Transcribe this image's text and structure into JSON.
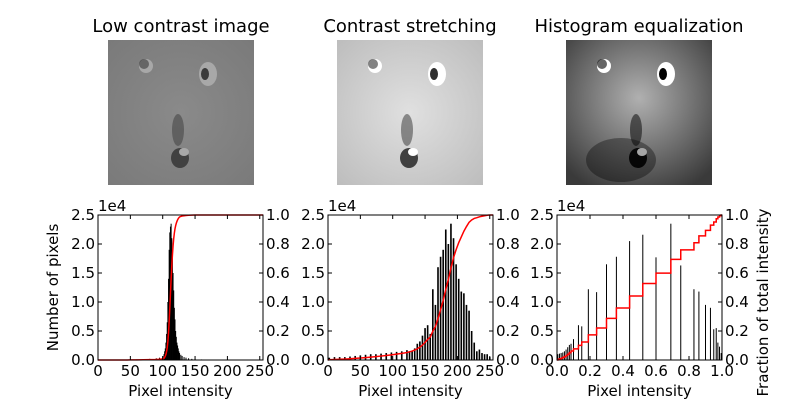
{
  "colors": {
    "cdf_line": "#ff0000",
    "bars": "#000000",
    "background": "#ffffff"
  },
  "images": [
    {
      "title": "Low contrast image",
      "tone": "low-contrast gray"
    },
    {
      "title": "Contrast stretching",
      "tone": "stretched light gray"
    },
    {
      "title": "Histogram equalization",
      "tone": "equalized high contrast"
    }
  ],
  "chart_data": [
    {
      "type": "bar",
      "xlabel": "Pixel intensity",
      "ylabel": "Number of pixels",
      "ylabel_right": "",
      "y_offset_label": "1e4",
      "xlim": [
        0,
        255
      ],
      "ylim": [
        0,
        25000
      ],
      "ylim_right": [
        0,
        1
      ],
      "xticks": [
        "0",
        "50",
        "100",
        "150",
        "200",
        "250"
      ],
      "xtick_values": [
        0,
        50,
        100,
        150,
        200,
        250
      ],
      "yticks": [
        "0.0",
        "0.5",
        "1.0",
        "1.5",
        "2.0",
        "2.5"
      ],
      "yticks_right": [
        "0.0",
        "0.2",
        "0.4",
        "0.6",
        "0.8",
        "1.0"
      ],
      "bar_width": 1,
      "bars": [
        [
          40,
          50
        ],
        [
          50,
          80
        ],
        [
          60,
          100
        ],
        [
          70,
          150
        ],
        [
          80,
          200
        ],
        [
          90,
          300
        ],
        [
          95,
          400
        ],
        [
          100,
          600
        ],
        [
          102,
          1000
        ],
        [
          103,
          1500
        ],
        [
          104,
          2000
        ],
        [
          105,
          3000
        ],
        [
          106,
          4500
        ],
        [
          107,
          6500
        ],
        [
          108,
          10000
        ],
        [
          109,
          14000
        ],
        [
          110,
          19000
        ],
        [
          111,
          22000
        ],
        [
          112,
          23000
        ],
        [
          113,
          23500
        ],
        [
          114,
          21000
        ],
        [
          115,
          18000
        ],
        [
          116,
          15000
        ],
        [
          117,
          12000
        ],
        [
          118,
          9000
        ],
        [
          119,
          7000
        ],
        [
          120,
          5000
        ],
        [
          121,
          4000
        ],
        [
          122,
          3000
        ],
        [
          123,
          2500
        ],
        [
          124,
          2000
        ],
        [
          125,
          1500
        ],
        [
          126,
          1200
        ],
        [
          128,
          900
        ],
        [
          130,
          700
        ],
        [
          133,
          500
        ],
        [
          136,
          400
        ],
        [
          140,
          300
        ],
        [
          145,
          200
        ],
        [
          150,
          150
        ],
        [
          160,
          100
        ]
      ],
      "cdf_series": "cumulative fraction of total intensity (right axis)"
    },
    {
      "type": "bar",
      "xlabel": "Pixel intensity",
      "ylabel": "",
      "ylabel_right": "",
      "y_offset_label": "1e4",
      "xlim": [
        0,
        255
      ],
      "ylim": [
        0,
        25000
      ],
      "ylim_right": [
        0,
        1
      ],
      "xticks": [
        "0",
        "50",
        "100",
        "150",
        "200",
        "250"
      ],
      "xtick_values": [
        0,
        50,
        100,
        150,
        200,
        250
      ],
      "yticks": [
        "0.0",
        "0.5",
        "1.0",
        "1.5",
        "2.0",
        "2.5"
      ],
      "yticks_right": [
        "0.0",
        "0.2",
        "0.4",
        "0.6",
        "0.8",
        "1.0"
      ],
      "bar_width": 2.5,
      "bars": [
        [
          2,
          400
        ],
        [
          10,
          500
        ],
        [
          18,
          500
        ],
        [
          26,
          500
        ],
        [
          34,
          600
        ],
        [
          42,
          700
        ],
        [
          50,
          800
        ],
        [
          58,
          900
        ],
        [
          66,
          1000
        ],
        [
          74,
          1000
        ],
        [
          82,
          1100
        ],
        [
          90,
          1200
        ],
        [
          98,
          1300
        ],
        [
          106,
          1400
        ],
        [
          114,
          1500
        ],
        [
          122,
          1700
        ],
        [
          126,
          1500
        ],
        [
          130,
          1500
        ],
        [
          134,
          2000
        ],
        [
          138,
          2800
        ],
        [
          142,
          3200
        ],
        [
          146,
          4200
        ],
        [
          150,
          5500
        ],
        [
          154,
          6000
        ],
        [
          158,
          4500
        ],
        [
          162,
          12200
        ],
        [
          166,
          9500
        ],
        [
          170,
          16000
        ],
        [
          174,
          17800
        ],
        [
          178,
          19000
        ],
        [
          182,
          22500
        ],
        [
          186,
          20000
        ],
        [
          190,
          23500
        ],
        [
          194,
          21000
        ],
        [
          198,
          16500
        ],
        [
          202,
          14000
        ],
        [
          206,
          11800
        ],
        [
          210,
          11500
        ],
        [
          214,
          9500
        ],
        [
          218,
          8500
        ],
        [
          222,
          5000
        ],
        [
          226,
          3000
        ],
        [
          230,
          1500
        ],
        [
          234,
          1800
        ],
        [
          238,
          1200
        ],
        [
          242,
          1000
        ],
        [
          246,
          1000
        ],
        [
          250,
          500
        ]
      ],
      "cdf_series": "cumulative fraction of total intensity (right axis)"
    },
    {
      "type": "bar",
      "xlabel": "Pixel intensity",
      "ylabel": "",
      "ylabel_right": "Fraction of total intensity",
      "y_offset_label": "1e4",
      "xlim": [
        0,
        1
      ],
      "ylim": [
        0,
        25000
      ],
      "ylim_right": [
        0,
        1
      ],
      "xticks": [
        "0.0",
        "0.2",
        "0.4",
        "0.6",
        "0.8",
        "1.0"
      ],
      "xtick_values": [
        0,
        0.2,
        0.4,
        0.6,
        0.8,
        1.0
      ],
      "yticks": [
        "0.0",
        "0.5",
        "1.0",
        "1.5",
        "2.0",
        "2.5"
      ],
      "yticks_right": [
        "0.0",
        "0.2",
        "0.4",
        "0.6",
        "0.8",
        "1.0"
      ],
      "bar_width": 0.006,
      "bars": [
        [
          0.005,
          1000
        ],
        [
          0.015,
          1100
        ],
        [
          0.025,
          1200
        ],
        [
          0.035,
          1300
        ],
        [
          0.045,
          1500
        ],
        [
          0.055,
          1800
        ],
        [
          0.065,
          2200
        ],
        [
          0.075,
          2600
        ],
        [
          0.085,
          2800
        ],
        [
          0.1,
          3600
        ],
        [
          0.13,
          6000
        ],
        [
          0.15,
          5800
        ],
        [
          0.19,
          12200
        ],
        [
          0.24,
          11700
        ],
        [
          0.3,
          16500
        ],
        [
          0.36,
          17800
        ],
        [
          0.44,
          20500
        ],
        [
          0.52,
          21600
        ],
        [
          0.6,
          17700
        ],
        [
          0.69,
          23500
        ],
        [
          0.75,
          16300
        ],
        [
          0.83,
          12200
        ],
        [
          0.86,
          11800
        ],
        [
          0.9,
          9500
        ],
        [
          0.93,
          9000
        ],
        [
          0.95,
          5300
        ],
        [
          0.965,
          5500
        ],
        [
          0.975,
          3000
        ],
        [
          0.985,
          2300
        ],
        [
          0.995,
          1200
        ]
      ],
      "cdf_series": "cumulative fraction of total intensity (right axis)"
    }
  ]
}
